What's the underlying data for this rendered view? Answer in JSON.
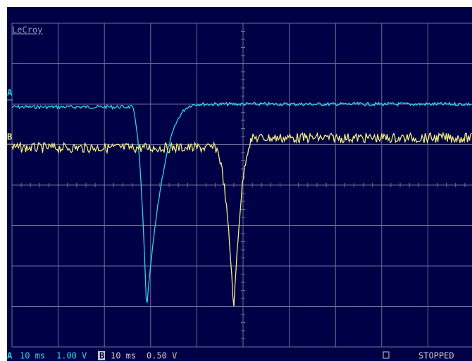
{
  "brand": "LeCroy",
  "channels": [
    {
      "label": "A",
      "timebase": "10 ms",
      "scale": "1.00 V"
    },
    {
      "label": "B",
      "timebase": "10 ms",
      "scale": "0.50 V"
    }
  ],
  "status": "STOPPED"
}
